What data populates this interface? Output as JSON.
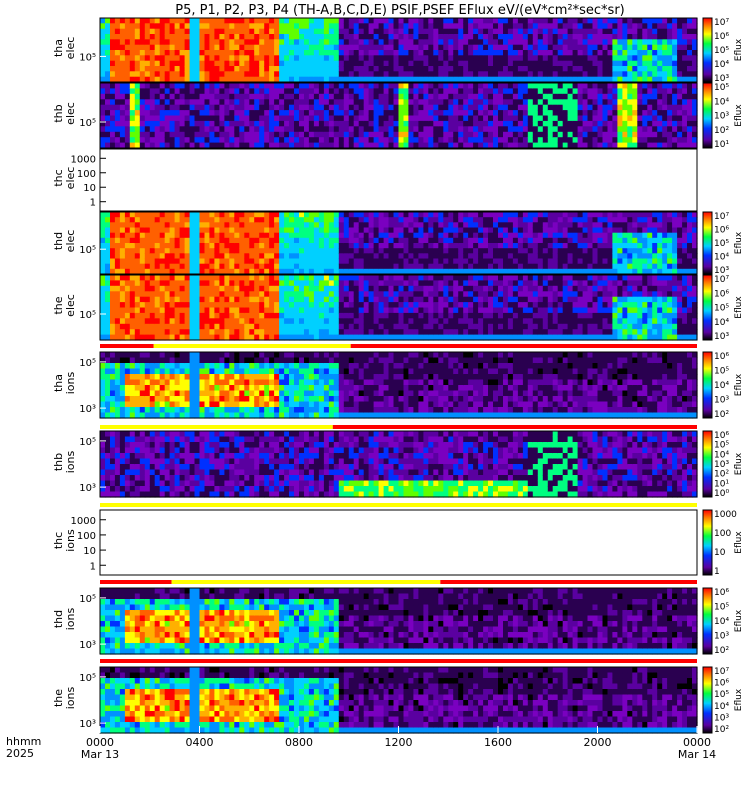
{
  "title": "P5, P1, P2, P3, P4 (TH-A,B,C,D,E) PSIF,PSEF EFlux eV/(eV*cm²*sec*sr)",
  "colors": {
    "background": "#000000",
    "quality_good": "#ffff00",
    "quality_bad": "#ff0000"
  },
  "colorbar_label": "Eflux",
  "bottom_labels": {
    "hhmm": "hhmm",
    "year": "2025"
  },
  "chart_data": {
    "type": "heatmap",
    "x_tick_labels": [
      "0000",
      "0400",
      "0800",
      "1200",
      "1600",
      "2000",
      "0000"
    ],
    "date_labels": {
      "start": "Mar 13",
      "end": "Mar 14"
    },
    "panels": [
      {
        "id": "tha_elec",
        "label1": "tha",
        "label2": "elec",
        "ytick": [
          "10⁵"
        ],
        "colorbar_ticks": [
          "10⁷",
          "10⁶",
          "10⁵",
          "10⁴",
          "10³"
        ],
        "has_data": true
      },
      {
        "id": "thb_elec",
        "label1": "thb",
        "label2": "elec",
        "ytick": [
          "10⁵"
        ],
        "colorbar_ticks": [
          "10⁵",
          "10⁴",
          "10³",
          "10²",
          "10¹"
        ],
        "has_data": true
      },
      {
        "id": "thc_elec",
        "label1": "thc",
        "label2": "elec",
        "ytick": [
          "1000",
          "100",
          "10",
          "1"
        ],
        "colorbar_ticks": [],
        "has_data": false
      },
      {
        "id": "thd_elec",
        "label1": "thd",
        "label2": "elec",
        "ytick": [
          "10⁵"
        ],
        "colorbar_ticks": [
          "10⁷",
          "10⁶",
          "10⁵",
          "10⁴",
          "10³"
        ],
        "has_data": true
      },
      {
        "id": "the_elec",
        "label1": "the",
        "label2": "elec",
        "ytick": [
          "10⁵"
        ],
        "colorbar_ticks": [
          "10⁷",
          "10⁶",
          "10⁵",
          "10⁴",
          "10³"
        ],
        "has_data": true
      },
      {
        "id": "tha_ions",
        "label1": "tha",
        "label2": "ions",
        "ytick": [
          "10⁵",
          "10³"
        ],
        "colorbar_ticks": [
          "10⁶",
          "10⁵",
          "10⁴",
          "10³",
          "10²"
        ],
        "has_data": true
      },
      {
        "id": "thb_ions",
        "label1": "thb",
        "label2": "ions",
        "ytick": [
          "10⁵",
          "10³"
        ],
        "colorbar_ticks": [
          "10⁶",
          "10⁵",
          "10⁴",
          "10³",
          "10²",
          "10¹",
          "10⁰"
        ],
        "has_data": true
      },
      {
        "id": "thc_ions",
        "label1": "thc",
        "label2": "ions",
        "ytick": [
          "1000",
          "100",
          "10",
          "1"
        ],
        "colorbar_ticks": [
          "1000",
          "100",
          "10",
          "1"
        ],
        "has_data": false
      },
      {
        "id": "thd_ions",
        "label1": "thd",
        "label2": "ions",
        "ytick": [
          "10⁵",
          "10³"
        ],
        "colorbar_ticks": [
          "10⁶",
          "10⁵",
          "10⁴",
          "10³",
          "10²"
        ],
        "has_data": true
      },
      {
        "id": "the_ions",
        "label1": "the",
        "label2": "ions",
        "ytick": [
          "10⁵",
          "10³"
        ],
        "colorbar_ticks": [
          "10⁷",
          "10⁶",
          "10⁵",
          "10⁴",
          "10³",
          "10²"
        ],
        "has_data": true
      }
    ],
    "quality_bars": [
      {
        "segments": [
          {
            "from": 0.0,
            "to": 0.09,
            "color": "red"
          },
          {
            "from": 0.09,
            "to": 0.42,
            "color": "yellow"
          },
          {
            "from": 0.42,
            "to": 1.0,
            "color": "red"
          }
        ]
      },
      {
        "segments": [
          {
            "from": 0.0,
            "to": 0.39,
            "color": "yellow"
          },
          {
            "from": 0.39,
            "to": 1.0,
            "color": "red"
          }
        ]
      },
      {
        "segments": [
          {
            "from": 0.0,
            "to": 1.0,
            "color": "yellow"
          }
        ]
      },
      {
        "segments": [
          {
            "from": 0.0,
            "to": 0.12,
            "color": "red"
          },
          {
            "from": 0.12,
            "to": 0.57,
            "color": "yellow"
          },
          {
            "from": 0.57,
            "to": 1.0,
            "color": "red"
          }
        ]
      },
      {
        "segments": [
          {
            "from": 0.0,
            "to": 1.0,
            "color": "red"
          }
        ]
      }
    ]
  }
}
